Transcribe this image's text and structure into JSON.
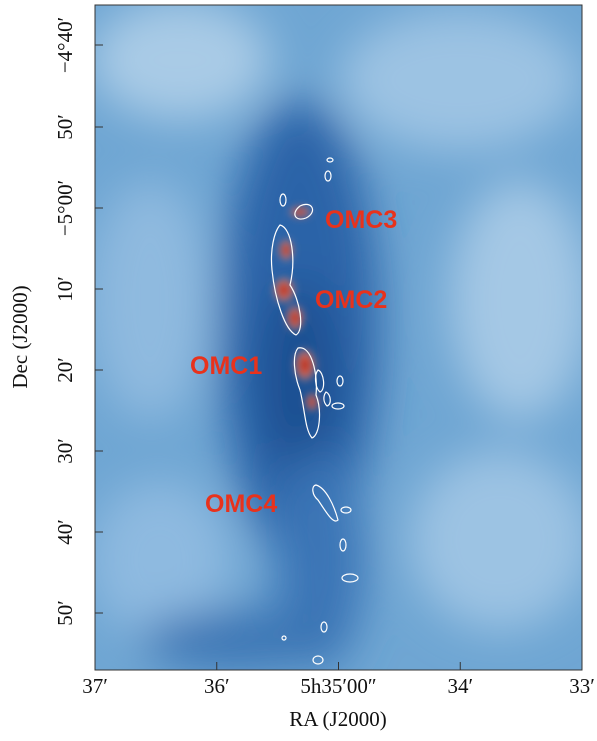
{
  "axes": {
    "x_label": "RA (J2000)",
    "y_label": "Dec (J2000)",
    "x_ticks": [
      "37′",
      "36′",
      "5h35′00″",
      "34′",
      "33′"
    ],
    "y_ticks": [
      "−4°40′",
      "50′",
      "−5°00′",
      "10′",
      "20′",
      "30′",
      "40′",
      "50′"
    ]
  },
  "annotations": [
    "OMC3",
    "OMC2",
    "OMC1",
    "OMC4"
  ]
}
